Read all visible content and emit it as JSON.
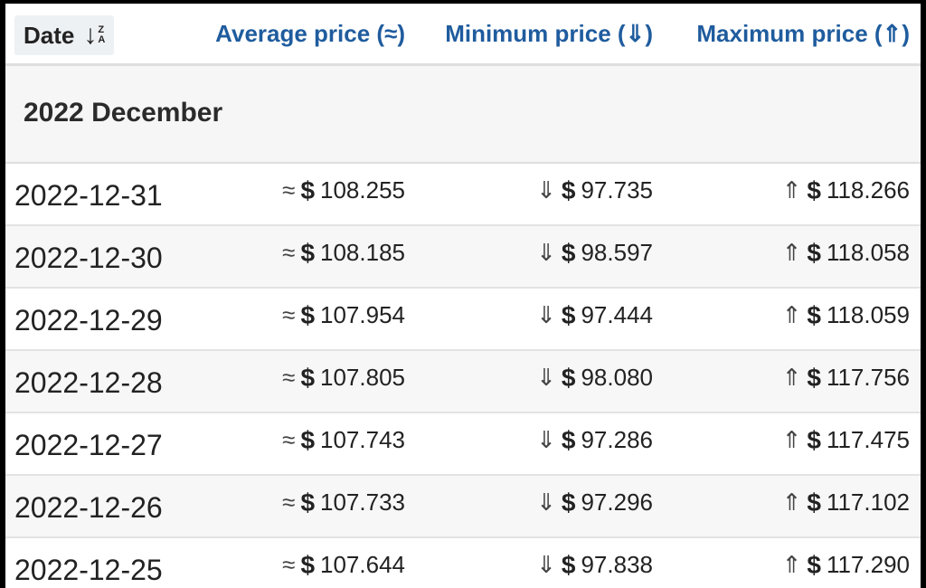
{
  "header": {
    "date_label": "Date",
    "sort_arrow": "↓",
    "sort_z": "Z",
    "sort_a": "A",
    "avg_label": "Average price (≈)",
    "min_label": "Minimum price (⇓)",
    "max_label": "Maximum price (⇑)"
  },
  "month": "2022 December",
  "symbols": {
    "avg": "≈",
    "min": "⇓",
    "max": "⇑",
    "currency": "$"
  },
  "rows": [
    {
      "date": "2022-12-31",
      "avg": "108.255",
      "min": "97.735",
      "max": "118.266"
    },
    {
      "date": "2022-12-30",
      "avg": "108.185",
      "min": "98.597",
      "max": "118.058"
    },
    {
      "date": "2022-12-29",
      "avg": "107.954",
      "min": "97.444",
      "max": "118.059"
    },
    {
      "date": "2022-12-28",
      "avg": "107.805",
      "min": "98.080",
      "max": "117.756"
    },
    {
      "date": "2022-12-27",
      "avg": "107.743",
      "min": "97.286",
      "max": "117.475"
    },
    {
      "date": "2022-12-26",
      "avg": "107.733",
      "min": "97.296",
      "max": "117.102"
    },
    {
      "date": "2022-12-25",
      "avg": "107.644",
      "min": "97.838",
      "max": "117.290"
    }
  ]
}
